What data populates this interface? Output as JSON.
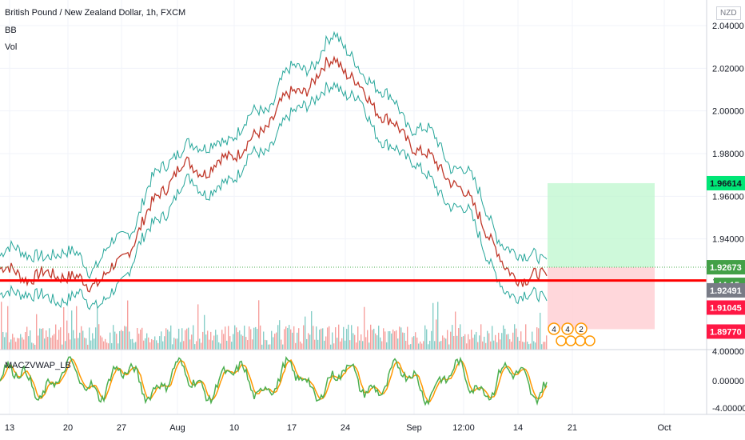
{
  "header": {
    "symbol_title": "British Pound / New Zealand Dollar, 1h, FXCM",
    "indicator_bb": "BB",
    "indicator_vol": "Vol",
    "subpane_title": "MACZVWAP_LB",
    "currency_badge": "NZD"
  },
  "colors": {
    "bb_band": "#26a69a",
    "price_line": "#c0392b",
    "support_line": "#ff0000",
    "profit_zone": "#b9f6ca",
    "loss_zone": "#ffcdd2",
    "volume_up": "#26a69a",
    "volume_down": "#ef5350",
    "osc_main": "#4caf50",
    "osc_signal": "#ff9800",
    "osc_bg": "#ffcdd2"
  },
  "chart_data": {
    "type": "line",
    "title": "British Pound / New Zealand Dollar, 1h, FXCM",
    "price_axis": {
      "ticks": [
        "2.04000",
        "2.02000",
        "2.00000",
        "1.98000",
        "1.96000",
        "1.94000",
        "1.92000"
      ],
      "range": [
        1.885,
        2.045
      ]
    },
    "time_axis": {
      "labels": [
        "13",
        "20",
        "27",
        "Aug",
        "10",
        "17",
        "24",
        "Sep",
        "12:00",
        "14",
        "21",
        "Oct"
      ]
    },
    "price_series": {
      "name": "GBPNZD close",
      "x_index": [
        0,
        40,
        80,
        110,
        150,
        200,
        230,
        260,
        300,
        330,
        350,
        380,
        420,
        460,
        500,
        530,
        560,
        600,
        630,
        660,
        685
      ],
      "values": [
        1.926,
        1.922,
        1.924,
        1.918,
        1.928,
        1.962,
        1.975,
        1.972,
        1.982,
        1.99,
        2.004,
        2.01,
        2.025,
        2.006,
        1.99,
        1.98,
        1.97,
        1.952,
        1.926,
        1.921,
        1.923
      ]
    },
    "horizontal_line": {
      "label": "support",
      "value": 1.9205
    },
    "position_tool": {
      "entry": 1.92673,
      "target": 1.96614,
      "stop": 1.8977
    },
    "price_labels": [
      {
        "text": "1.96614",
        "value": 1.96614,
        "kind": "target"
      },
      {
        "text": "1.92673",
        "value": 1.92673,
        "kind": "entry"
      },
      {
        "text": "44:15",
        "value": 1.927,
        "kind": "countdown"
      },
      {
        "text": "1.92491",
        "value": 1.92491,
        "kind": "last"
      },
      {
        "text": "1.91045",
        "value": 1.91045,
        "kind": "stop-mid"
      },
      {
        "text": "1.89770",
        "value": 1.8977,
        "kind": "stop"
      }
    ],
    "oscillator": {
      "name": "MACZVWAP_LB",
      "ticks": [
        "4.00000",
        "0.00000",
        "-4.00000"
      ],
      "range": [
        -4.0,
        4.0
      ]
    },
    "event_badges": [
      "4",
      "4",
      "2"
    ]
  }
}
